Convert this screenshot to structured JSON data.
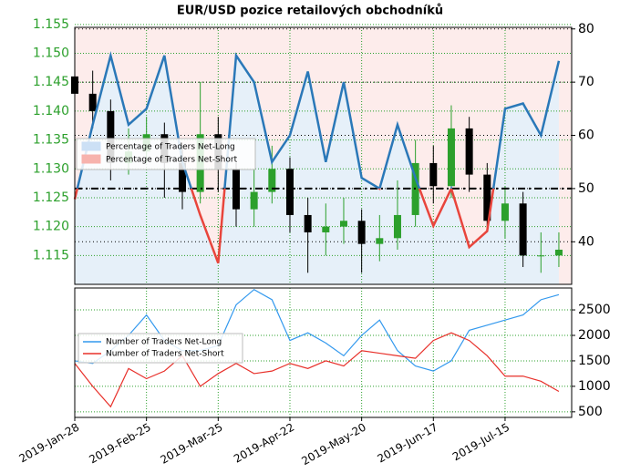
{
  "chart_data": [
    {
      "type": "candlestick",
      "title": "EUR/USD pozice retailových obchodníků",
      "x": [
        "2019-01-28",
        "2019-02-04",
        "2019-02-11",
        "2019-02-18",
        "2019-02-25",
        "2019-03-04",
        "2019-03-11",
        "2019-03-18",
        "2019-03-25",
        "2019-04-01",
        "2019-04-08",
        "2019-04-15",
        "2019-04-22",
        "2019-04-29",
        "2019-05-06",
        "2019-05-13",
        "2019-05-20",
        "2019-05-27",
        "2019-06-03",
        "2019-06-10",
        "2019-06-17",
        "2019-06-24",
        "2019-07-01",
        "2019-07-08",
        "2019-07-15",
        "2019-07-22",
        "2019-07-29",
        "2019-08-05"
      ],
      "open": [
        1.146,
        1.143,
        1.14,
        1.131,
        1.133,
        1.136,
        1.131,
        1.126,
        1.136,
        1.13,
        1.123,
        1.126,
        1.13,
        1.122,
        1.119,
        1.12,
        1.121,
        1.117,
        1.118,
        1.122,
        1.131,
        1.127,
        1.137,
        1.129,
        1.121,
        1.124,
        1.115,
        1.115
      ],
      "high": [
        1.151,
        1.147,
        1.142,
        1.137,
        1.139,
        1.138,
        1.134,
        1.145,
        1.139,
        1.131,
        1.13,
        1.134,
        1.132,
        1.125,
        1.124,
        1.125,
        1.123,
        1.122,
        1.128,
        1.135,
        1.134,
        1.141,
        1.139,
        1.131,
        1.127,
        1.126,
        1.119,
        1.119
      ],
      "low": [
        1.139,
        1.137,
        1.128,
        1.129,
        1.131,
        1.125,
        1.123,
        1.124,
        1.126,
        1.12,
        1.12,
        1.124,
        1.119,
        1.112,
        1.115,
        1.117,
        1.112,
        1.114,
        1.116,
        1.12,
        1.124,
        1.125,
        1.126,
        1.119,
        1.118,
        1.113,
        1.112,
        1.113
      ],
      "close": [
        1.143,
        1.14,
        1.131,
        1.133,
        1.136,
        1.131,
        1.126,
        1.136,
        1.13,
        1.123,
        1.126,
        1.13,
        1.122,
        1.119,
        1.12,
        1.121,
        1.117,
        1.118,
        1.122,
        1.131,
        1.127,
        1.137,
        1.129,
        1.121,
        1.124,
        1.115,
        1.115,
        1.116
      ],
      "up_color": "#2ca02c",
      "down_color": "#000000",
      "ylim": [
        1.11,
        1.1545
      ],
      "yticks": [
        1.115,
        {
          "value": 1.12,
          "label": "1.120"
        },
        1.125,
        {
          "value": 1.13,
          "label": "1.130"
        },
        1.135,
        {
          "value": 1.14,
          "label": "1.140"
        },
        1.145,
        {
          "value": 1.15,
          "label": "1.150"
        },
        1.155
      ],
      "y2lim": [
        32,
        80.3
      ],
      "y2ticks": [
        40,
        50,
        60,
        70,
        80
      ],
      "threshold": 50,
      "series": [
        {
          "name": "Percentage of Traders Net-Long",
          "color": "#2a78b8",
          "axis": "y2",
          "values": [
            48,
            62,
            75,
            62,
            65,
            75,
            55,
            45,
            36,
            75,
            70,
            55,
            60,
            72,
            55,
            70,
            52,
            50,
            62,
            52,
            43,
            50,
            39,
            42,
            65,
            66,
            60,
            74
          ]
        }
      ],
      "legend": [
        {
          "name": "Percentage of Traders Net-Long",
          "color": "#cce0f5"
        },
        {
          "name": "Percentage of Traders Net-Short",
          "color": "#f7b3ad"
        }
      ],
      "short_color": "#e8453c"
    },
    {
      "type": "line",
      "x": [
        "2019-01-28",
        "2019-02-04",
        "2019-02-11",
        "2019-02-18",
        "2019-02-25",
        "2019-03-04",
        "2019-03-11",
        "2019-03-18",
        "2019-03-25",
        "2019-04-01",
        "2019-04-08",
        "2019-04-15",
        "2019-04-22",
        "2019-04-29",
        "2019-05-06",
        "2019-05-13",
        "2019-05-20",
        "2019-05-27",
        "2019-06-03",
        "2019-06-10",
        "2019-06-17",
        "2019-06-24",
        "2019-07-01",
        "2019-07-08",
        "2019-07-15",
        "2019-07-22",
        "2019-07-29",
        "2019-08-05"
      ],
      "xlim": [
        "2019-01-28",
        "2019-08-10"
      ],
      "xticks": [
        {
          "value": "2019-01-28",
          "label": "2019-Jan-28"
        },
        {
          "value": "2019-02-25",
          "label": "2019-Feb-25"
        },
        {
          "value": "2019-03-25",
          "label": "2019-Mar-25"
        },
        {
          "value": "2019-04-22",
          "label": "2019-Apr-22"
        },
        {
          "value": "2019-05-20",
          "label": "2019-May-20"
        },
        {
          "value": "2019-06-17",
          "label": "2019-Jun-17"
        },
        {
          "value": "2019-07-15",
          "label": "2019-Jul-15"
        }
      ],
      "y2lim": [
        390,
        2930
      ],
      "y2ticks": [
        500,
        1000,
        1500,
        2000,
        2500
      ],
      "series": [
        {
          "name": "Number of Traders Net-Long",
          "color": "#3399ee",
          "axis": "y2",
          "values": [
            1500,
            1450,
            1700,
            2000,
            2400,
            1900,
            1700,
            1700,
            1800,
            2600,
            2900,
            2700,
            1900,
            2050,
            1850,
            1600,
            2000,
            2300,
            1700,
            1400,
            1300,
            1500,
            2100,
            2200,
            2300,
            2400,
            2700,
            2800
          ]
        },
        {
          "name": "Number of Traders Net-Short",
          "color": "#e8302a",
          "axis": "y2",
          "values": [
            1450,
            1000,
            600,
            1350,
            1150,
            1300,
            1600,
            1000,
            1250,
            1450,
            1250,
            1300,
            1450,
            1350,
            1500,
            1400,
            1700,
            1650,
            1600,
            1550,
            1900,
            2050,
            1900,
            1600,
            1200,
            1200,
            1100,
            900
          ]
        }
      ]
    }
  ]
}
